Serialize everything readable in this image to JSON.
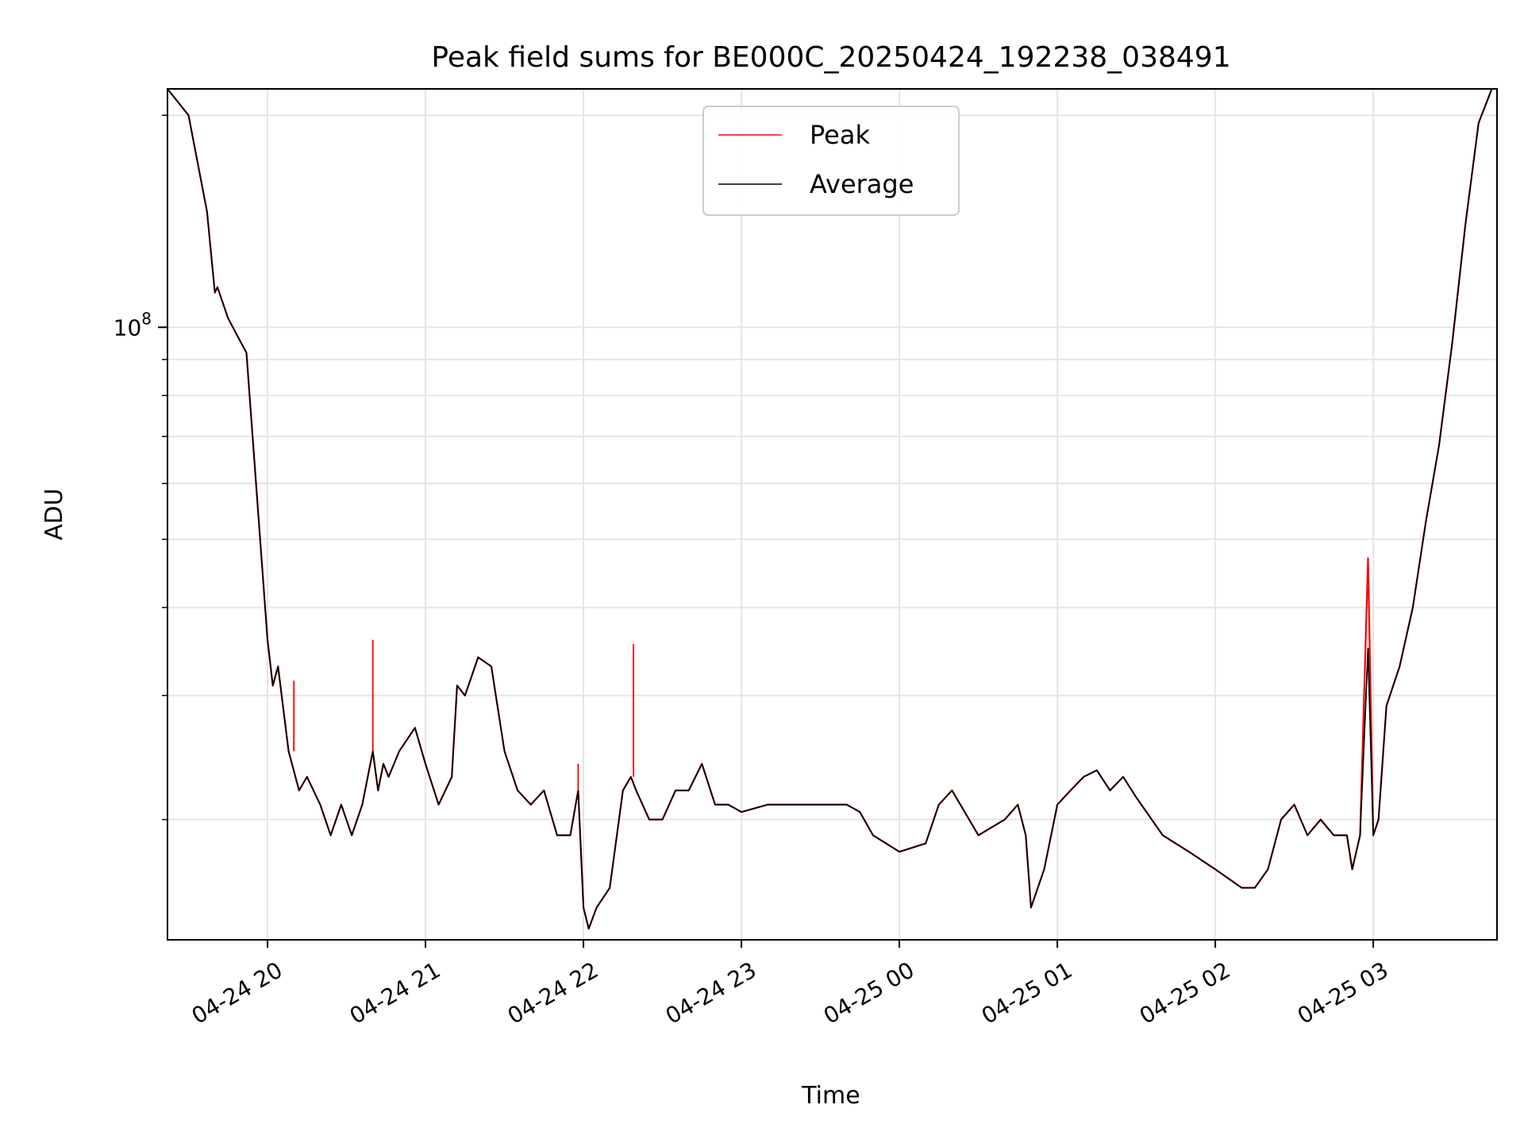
{
  "chart_data": {
    "type": "line",
    "title": "Peak field sums for BE000C_20250424_192238_038491",
    "xlabel": "Time",
    "ylabel": "ADU",
    "yscale": "log",
    "ylim": [
      13500000,
      218000000
    ],
    "xlim": [
      "2025-04-24 19:22",
      "2025-04-25 03:47"
    ],
    "x_ticks": [
      "04-24 20",
      "04-24 21",
      "04-24 22",
      "04-24 23",
      "04-25 00",
      "04-25 01",
      "04-25 02",
      "04-25 03"
    ],
    "x_tick_times": [
      "2025-04-24 20:00",
      "2025-04-24 21:00",
      "2025-04-24 22:00",
      "2025-04-24 23:00",
      "2025-04-25 00:00",
      "2025-04-25 01:00",
      "2025-04-25 02:00",
      "2025-04-25 03:00"
    ],
    "y_ticks": [
      {
        "label": "10",
        "exponent": "8",
        "value": 100000000
      }
    ],
    "y_minor_ticks": [
      20000000,
      30000000,
      40000000,
      50000000,
      60000000,
      70000000,
      80000000,
      90000000,
      200000000
    ],
    "grid": true,
    "legend_position": "top-center",
    "colors": {
      "Peak": "#ff0000",
      "Average": "#000000"
    },
    "x": [
      "19:22",
      "19:30",
      "19:37",
      "19:40",
      "19:41",
      "19:45",
      "19:52",
      "20:00",
      "20:02",
      "20:04",
      "20:08",
      "20:12",
      "20:15",
      "20:20",
      "20:24",
      "20:28",
      "20:32",
      "20:36",
      "20:40",
      "20:42",
      "20:44",
      "20:46",
      "20:50",
      "20:56",
      "21:00",
      "21:05",
      "21:10",
      "21:12",
      "21:15",
      "21:20",
      "21:25",
      "21:30",
      "21:35",
      "21:40",
      "21:45",
      "21:50",
      "21:55",
      "21:58",
      "22:00",
      "22:02",
      "22:05",
      "22:10",
      "22:15",
      "22:18",
      "22:20",
      "22:25",
      "22:30",
      "22:35",
      "22:40",
      "22:45",
      "22:50",
      "22:55",
      "23:00",
      "23:10",
      "23:20",
      "23:30",
      "23:40",
      "23:45",
      "23:50",
      "00:00",
      "00:10",
      "00:15",
      "00:20",
      "00:30",
      "00:40",
      "00:45",
      "00:48",
      "00:50",
      "00:55",
      "01:00",
      "01:05",
      "01:10",
      "01:15",
      "01:20",
      "01:25",
      "01:30",
      "01:40",
      "01:50",
      "02:00",
      "02:10",
      "02:15",
      "02:20",
      "02:25",
      "02:30",
      "02:35",
      "02:40",
      "02:45",
      "02:50",
      "02:52",
      "02:55",
      "02:58",
      "03:00",
      "03:02",
      "03:05",
      "03:10",
      "03:15",
      "03:20",
      "03:25",
      "03:30",
      "03:35",
      "03:40",
      "03:45",
      "03:47"
    ],
    "series": [
      {
        "name": "Peak",
        "values": [
          218,
          200,
          146,
          112,
          114,
          103,
          92,
          36,
          31,
          33,
          25,
          22,
          23,
          21,
          19,
          21,
          19,
          21,
          25,
          22,
          24,
          23,
          25,
          27,
          24,
          21,
          23,
          31,
          30,
          34,
          33,
          25,
          22,
          21,
          22,
          19,
          19,
          22,
          15,
          14,
          15,
          16,
          22,
          23,
          22,
          20,
          20,
          22,
          22,
          24,
          21,
          21,
          20.5,
          21,
          21,
          21,
          21,
          20.5,
          19,
          18,
          18.5,
          21,
          22,
          19,
          20,
          21,
          19,
          15,
          17,
          21,
          22,
          23,
          23.5,
          22,
          23,
          21.5,
          19,
          18,
          17,
          16,
          16,
          17,
          20,
          21,
          19,
          20,
          19,
          19,
          17,
          19,
          47,
          19,
          20,
          29,
          33,
          40,
          53,
          68,
          95,
          140,
          195,
          218,
          218
        ]
      },
      {
        "name": "Average",
        "values": [
          218,
          200,
          146,
          112,
          114,
          103,
          92,
          36,
          31,
          33,
          25,
          22,
          23,
          21,
          19,
          21,
          19,
          21,
          25,
          22,
          24,
          23,
          25,
          27,
          24,
          21,
          23,
          31,
          30,
          34,
          33,
          25,
          22,
          21,
          22,
          19,
          19,
          22,
          15,
          14,
          15,
          16,
          22,
          23,
          22,
          20,
          20,
          22,
          22,
          24,
          21,
          21,
          20.5,
          21,
          21,
          21,
          21,
          20.5,
          19,
          18,
          18.5,
          21,
          22,
          19,
          20,
          21,
          19,
          15,
          17,
          21,
          22,
          23,
          23.5,
          22,
          23,
          21.5,
          19,
          18,
          17,
          16,
          16,
          17,
          20,
          21,
          19,
          20,
          19,
          19,
          17,
          19,
          35,
          19,
          20,
          29,
          33,
          40,
          53,
          68,
          95,
          140,
          195,
          218,
          218
        ]
      }
    ],
    "values_unit_multiplier": 1000000,
    "spikes": [
      {
        "series": "Peak",
        "x": "20:40",
        "value": 36000000
      },
      {
        "series": "Peak",
        "x": "22:19",
        "value": 35500000
      },
      {
        "series": "Peak",
        "x": "20:10",
        "value": 31500000
      },
      {
        "series": "Peak",
        "x": "21:58",
        "value": 24000000
      }
    ]
  }
}
